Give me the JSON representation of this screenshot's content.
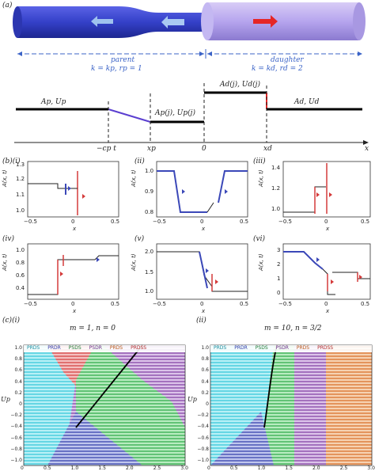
{
  "panel_labels": {
    "a": "(a)",
    "b": "(b)(i)",
    "c": "(c)(i)"
  },
  "top": {
    "parent": "parent",
    "daughter": "daughter",
    "parent_params": "k = k",
    "parent_params_full": "k = kp, rp = 1",
    "daughter_params_full": "k = kd, rd = 2"
  },
  "schematic": {
    "left_label": "Ap, Up",
    "mid_label": "Ap(j), Up(j)",
    "top_label": "Ad(j), Ud(j)",
    "right_label": "Ad, Ud",
    "ticks": [
      "−cp t",
      "xp",
      "0",
      "xd"
    ],
    "xaxis": "x"
  },
  "subpanel_labels": [
    "(ii)",
    "(iii)",
    "(iv)",
    "(v)",
    "(vi)",
    "(ii)"
  ],
  "small_axes": {
    "ylabel": "A(x, t)",
    "xlabel": "x",
    "xticks": [
      "−0.5",
      "0",
      "0.5"
    ],
    "p1_yticks": [
      "1.3",
      "1.2",
      "1.1",
      "1.0"
    ],
    "p2_yticks": [
      "1.0",
      "0.9",
      "0.8"
    ],
    "p3_yticks": [
      "1.4",
      "1.2",
      "1.0"
    ],
    "p4_yticks": [
      "1.0",
      "0.8",
      "0.6",
      "0.4"
    ],
    "p5_yticks": [
      "2.0",
      "1.5",
      "1.0"
    ],
    "p6_yticks": [
      "3",
      "2",
      "1",
      "0"
    ]
  },
  "bottom": {
    "left_title": "m = 1, n = 0",
    "right_title": "m = 10, n = 3/2",
    "legend": [
      "PRDS",
      "PRDR",
      "PSDS",
      "PSDR",
      "PRDS",
      "PRDSS"
    ],
    "legend_right": [
      "PRDS",
      "PRDR",
      "PSDS",
      "PSDR",
      "PRDS",
      "PRDSS"
    ],
    "legend_colors": [
      "#4fd4e4",
      "#3b48b8",
      "#2aa84a",
      "#8a3fa4",
      "#e07a2e",
      "#d43a3a"
    ],
    "yticks": [
      "1.0",
      "0.8",
      "0.6",
      "0.4",
      "0.2",
      "0",
      "−0.2",
      "−0.4",
      "−0.6",
      "−0.8",
      "−1.0"
    ],
    "xticks_left": [
      "0",
      "0.5",
      "1.0",
      "1.5",
      "2.0",
      "2.5",
      "3.0"
    ],
    "xticks_right": [
      "0",
      "0.5",
      "1.0",
      "1.5",
      "2.0",
      "2.5",
      "3.0"
    ],
    "xlabel": "Ap",
    "ylabel": "Up"
  }
}
